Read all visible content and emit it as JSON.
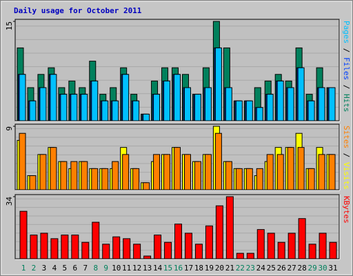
{
  "chart_data": [
    {
      "type": "bar",
      "title": "Daily usage for October 2011",
      "ylim": [
        0,
        15
      ],
      "yticks": [
        15
      ],
      "legend_separator": "/",
      "series": [
        {
          "name": "Hits",
          "color": "#00805c",
          "values": [
            11,
            5,
            7,
            8,
            5,
            6,
            5,
            9,
            4,
            5,
            8,
            4,
            1,
            6,
            8,
            8,
            7,
            4,
            8,
            15,
            11,
            3,
            3,
            5,
            6,
            7,
            6,
            11,
            4,
            8,
            5
          ]
        },
        {
          "name": "Files",
          "color": "#0040ff",
          "values": [
            7,
            3,
            5,
            7,
            4,
            4,
            4,
            6,
            3,
            3,
            7,
            3,
            1,
            4,
            6,
            7,
            5,
            4,
            5,
            11,
            5,
            3,
            3,
            2,
            4,
            6,
            5,
            8,
            3,
            5,
            5
          ]
        },
        {
          "name": "Pages",
          "color": "#00c0ff",
          "values": [
            7,
            3,
            5,
            7,
            4,
            4,
            4,
            6,
            3,
            3,
            7,
            3,
            1,
            4,
            6,
            7,
            5,
            4,
            5,
            11,
            5,
            3,
            3,
            2,
            4,
            6,
            5,
            8,
            3,
            5,
            5
          ]
        }
      ]
    },
    {
      "type": "bar",
      "ylim": [
        0,
        9
      ],
      "yticks": [
        9
      ],
      "legend_separator": "/",
      "series": [
        {
          "name": "Visits",
          "color": "#ffff00",
          "values": [
            7,
            2,
            5,
            6,
            4,
            3,
            4,
            3,
            3,
            3,
            6,
            3,
            1,
            4,
            5,
            6,
            5,
            4,
            5,
            9,
            4,
            3,
            3,
            2,
            4,
            6,
            6,
            8,
            3,
            6,
            5
          ]
        },
        {
          "name": "Sites",
          "color": "#ff8000",
          "values": [
            8,
            2,
            5,
            6,
            4,
            4,
            4,
            3,
            3,
            4,
            5,
            3,
            1,
            5,
            5,
            6,
            5,
            4,
            5,
            8,
            4,
            3,
            3,
            3,
            5,
            5,
            6,
            6,
            3,
            5,
            5
          ]
        }
      ]
    },
    {
      "type": "bar",
      "ylim": [
        0,
        34
      ],
      "yticks": [
        34
      ],
      "categories": [
        1,
        2,
        3,
        4,
        5,
        6,
        7,
        8,
        9,
        10,
        11,
        12,
        13,
        14,
        15,
        16,
        17,
        18,
        19,
        20,
        21,
        22,
        23,
        24,
        25,
        26,
        27,
        28,
        29,
        30,
        31
      ],
      "highlight_categories": [
        1,
        2,
        8,
        9,
        15,
        16,
        22,
        23,
        29,
        30
      ],
      "highlight_color": "#00805c",
      "series": [
        {
          "name": "KBytes",
          "color": "#ff0000",
          "values": [
            26,
            13,
            14,
            11,
            13,
            13,
            9,
            20,
            8,
            12,
            11,
            8,
            1.5,
            13,
            9,
            19,
            14,
            8,
            18,
            29,
            34,
            3,
            3,
            16,
            14,
            9,
            14,
            22,
            8,
            14,
            9
          ]
        }
      ]
    }
  ]
}
